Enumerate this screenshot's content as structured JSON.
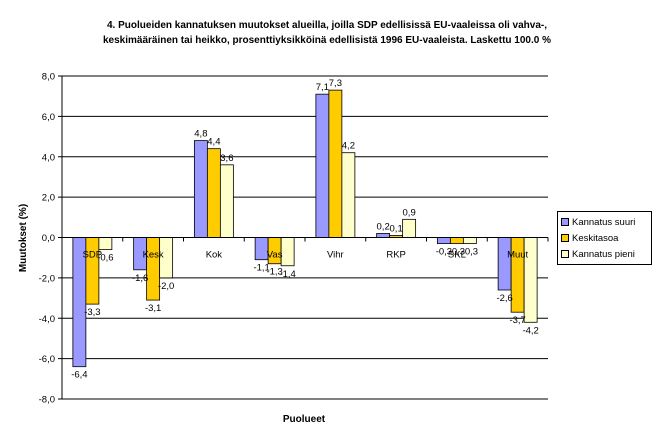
{
  "chart_data": {
    "type": "bar",
    "title_lines": [
      "4. Puolueiden kannatuksen muutokset alueilla, joilla SDP edellisissä EU-vaaleissa oli vahva-,",
      "keskimääräinen tai heikko, prosenttiyksikköinä edellisistä 1996 EU-vaaleista. Laskettu 100.0 %"
    ],
    "xlabel": "Puolueet",
    "ylabel": "Muutokset (%)",
    "ylim": [
      -8,
      8
    ],
    "yticks": [
      "-8,0",
      "-6,0",
      "-4,0",
      "-2,0",
      "0,0",
      "2,0",
      "4,0",
      "6,0",
      "8,0"
    ],
    "grid": true,
    "legend_position": "right",
    "categories": [
      "SDP",
      "Kesk",
      "Kok",
      "Vas",
      "Vihr",
      "RKP",
      "SKL",
      "Muut"
    ],
    "series": [
      {
        "name": "Kannatus suuri",
        "color": "#9999ff",
        "values": [
          -6.4,
          -1.6,
          4.8,
          -1.1,
          7.1,
          0.2,
          -0.3,
          -2.6
        ],
        "labels": [
          "-6,4",
          "-1,6",
          "4,8",
          "-1,1",
          "7,1",
          "0,2",
          "-0,3",
          "-2,6"
        ]
      },
      {
        "name": "Keskitasoa",
        "color": "#ffcc00",
        "values": [
          -3.3,
          -3.1,
          4.4,
          -1.3,
          7.3,
          0.1,
          -0.3,
          -3.7
        ],
        "labels": [
          "-3,3",
          "-3,1",
          "4,4",
          "-1,3",
          "7,3",
          "0,1",
          "-0,3",
          "-3,7"
        ]
      },
      {
        "name": "Kannatus pieni",
        "color": "#ffffcc",
        "values": [
          -0.6,
          -2.0,
          3.6,
          -1.4,
          4.2,
          0.9,
          -0.3,
          -4.2
        ],
        "labels": [
          "-0,6",
          "-2,0",
          "3,6",
          "-1,4",
          "4,2",
          "0,9",
          "-0,3",
          "-4,2"
        ]
      }
    ]
  }
}
